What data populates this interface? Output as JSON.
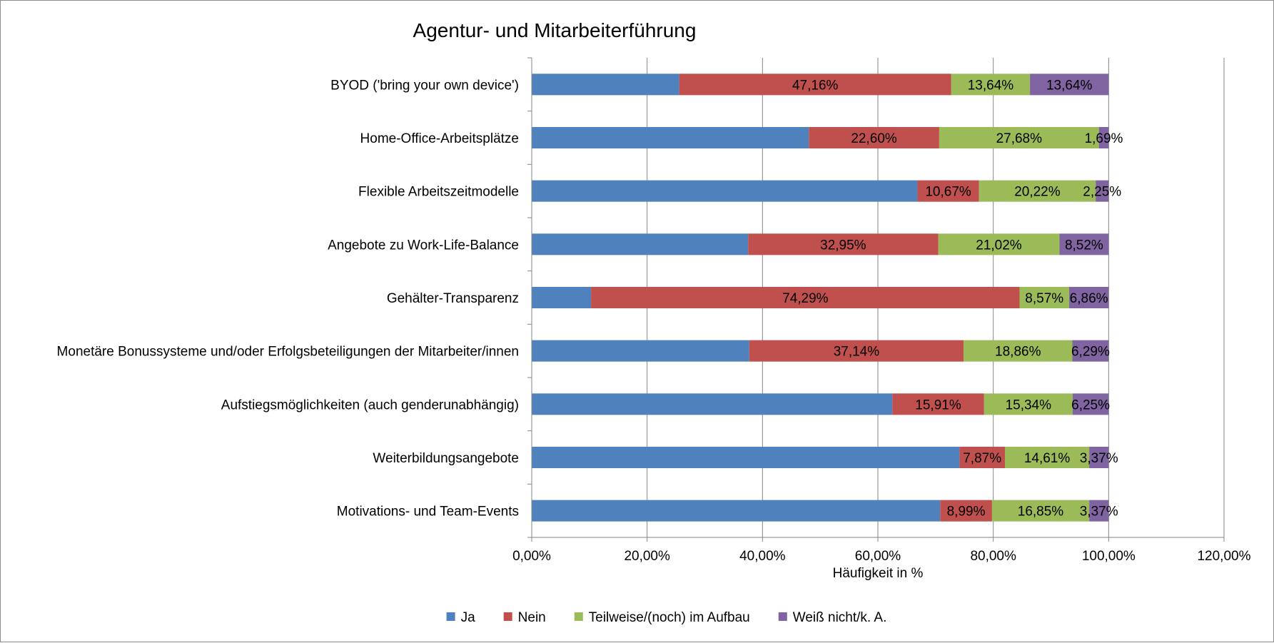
{
  "chart_data": {
    "type": "bar",
    "orientation": "horizontal",
    "stacked": true,
    "title": "Agentur- und Mitarbeiterführung",
    "xlabel": "Häufigkeit in %",
    "ylabel": "",
    "xlim": [
      0,
      120
    ],
    "x_ticks": [
      "0,00%",
      "20,00%",
      "40,00%",
      "60,00%",
      "80,00%",
      "100,00%",
      "120,00%"
    ],
    "grid": "vertical",
    "legend_position": "bottom",
    "categories": [
      "BYOD ('bring your own device')",
      "Home-Office-Arbeitsplätze",
      "Flexible Arbeitszeitmodelle",
      "Angebote zu Work-Life-Balance",
      "Gehälter-Transparenz",
      "Monetäre Bonussysteme und/oder Erfolgsbeteiligungen der Mitarbeiter/innen",
      "Aufstiegsmöglichkeiten (auch genderunabhängig)",
      "Weiterbildungsangebote",
      "Motivations- und Team-Events"
    ],
    "series": [
      {
        "name": "Ja",
        "color": "#4f81bd",
        "values": [
          25.56,
          48.03,
          66.86,
          37.51,
          10.28,
          37.71,
          62.5,
          74.15,
          70.79
        ],
        "labels": [
          "",
          "",
          "",
          "",
          "",
          "",
          "",
          "",
          ""
        ]
      },
      {
        "name": "Nein",
        "color": "#c0504d",
        "values": [
          47.16,
          22.6,
          10.67,
          32.95,
          74.29,
          37.14,
          15.91,
          7.87,
          8.99
        ],
        "labels": [
          "47,16%",
          "22,60%",
          "10,67%",
          "32,95%",
          "74,29%",
          "37,14%",
          "15,91%",
          "7,87%",
          "8,99%"
        ]
      },
      {
        "name": "Teilweise/(noch) im Aufbau",
        "color": "#9bbb59",
        "values": [
          13.64,
          27.68,
          20.22,
          21.02,
          8.57,
          18.86,
          15.34,
          14.61,
          16.85
        ],
        "labels": [
          "13,64%",
          "27,68%",
          "20,22%",
          "21,02%",
          "8,57%",
          "18,86%",
          "15,34%",
          "14,61%",
          "16,85%"
        ]
      },
      {
        "name": "Weiß nicht/k. A.",
        "color": "#8064a2",
        "values": [
          13.64,
          1.69,
          2.25,
          8.52,
          6.86,
          6.29,
          6.25,
          3.37,
          3.37
        ],
        "labels": [
          "13,64%",
          "1,69%",
          "2,25%",
          "8,52%",
          "6,86%",
          "6,29%",
          "6,25%",
          "3,37%",
          "3,37%"
        ]
      }
    ]
  }
}
